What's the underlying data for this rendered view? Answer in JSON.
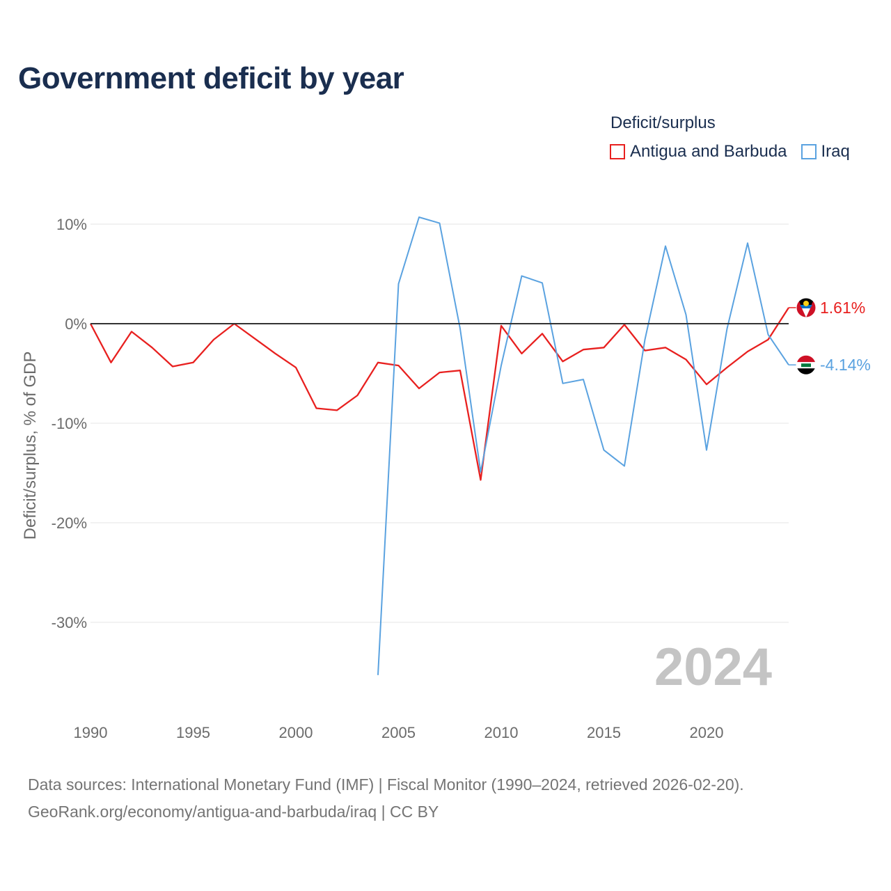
{
  "chart_data": {
    "type": "line",
    "title": "Government deficit by year",
    "ylabel": "Deficit/surplus, % of GDP",
    "xlabel": "",
    "xlim": [
      1990,
      2024
    ],
    "ylim": [
      -36,
      11
    ],
    "x_ticks": [
      1990,
      1995,
      2000,
      2005,
      2010,
      2015,
      2020
    ],
    "y_ticks": [
      10,
      0,
      -10,
      -20,
      -30
    ],
    "y_tick_labels": [
      "10%",
      "0%",
      "-10%",
      "-20%",
      "-30%"
    ],
    "legend_title": "Deficit/surplus",
    "legend_position": "top-right",
    "year_stamp": "2024",
    "series": [
      {
        "name": "Antigua and Barbuda",
        "color": "#e8201f",
        "end_label": "1.61%",
        "flag": "antigua-and-barbuda-flag-icon",
        "x": [
          1990,
          1991,
          1992,
          1993,
          1994,
          1995,
          1996,
          1997,
          1998,
          1999,
          2000,
          2001,
          2002,
          2003,
          2004,
          2005,
          2006,
          2007,
          2008,
          2009,
          2010,
          2011,
          2012,
          2013,
          2014,
          2015,
          2016,
          2017,
          2018,
          2019,
          2020,
          2021,
          2022,
          2023,
          2024
        ],
        "values": [
          0.0,
          -3.9,
          -0.8,
          -2.4,
          -4.3,
          -3.9,
          -1.6,
          0.0,
          -1.5,
          -3.0,
          -4.4,
          -8.5,
          -8.7,
          -7.2,
          -3.9,
          -4.2,
          -6.5,
          -4.9,
          -4.7,
          -15.7,
          -0.2,
          -3.0,
          -1.0,
          -3.8,
          -2.6,
          -2.4,
          -0.1,
          -2.7,
          -2.4,
          -3.6,
          -6.1,
          -4.4,
          -2.8,
          -1.6,
          1.61
        ]
      },
      {
        "name": "Iraq",
        "color": "#5aa2e0",
        "end_label": "-4.14%",
        "flag": "iraq-flag-icon",
        "x": [
          2004,
          2005,
          2006,
          2007,
          2008,
          2009,
          2010,
          2011,
          2012,
          2013,
          2014,
          2015,
          2016,
          2017,
          2018,
          2019,
          2020,
          2021,
          2022,
          2023,
          2024
        ],
        "values": [
          -35.3,
          4.0,
          10.7,
          10.1,
          -0.5,
          -14.9,
          -4.2,
          4.8,
          4.1,
          -6.0,
          -5.6,
          -12.7,
          -14.3,
          -1.6,
          7.8,
          0.9,
          -12.7,
          -0.5,
          8.1,
          -1.1,
          -4.14
        ]
      }
    ]
  },
  "source": {
    "line1": "Data sources: International Monetary Fund (IMF) | Fiscal Monitor (1990–2024, retrieved 2026-02-20).",
    "line2": "GeoRank.org/economy/antigua-and-barbuda/iraq | CC BY"
  }
}
